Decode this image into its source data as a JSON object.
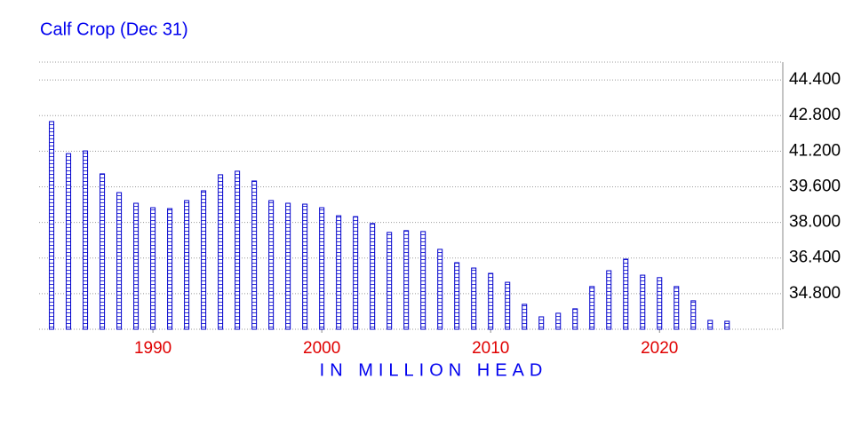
{
  "chart_data": {
    "type": "bar",
    "title": "Calf Crop (Dec 31)",
    "y_label": "IN MILLION HEAD",
    "x": [
      1984,
      1985,
      1986,
      1987,
      1988,
      1989,
      1990,
      1991,
      1992,
      1993,
      1994,
      1995,
      1996,
      1997,
      1998,
      1999,
      2000,
      2001,
      2002,
      2003,
      2004,
      2005,
      2006,
      2007,
      2008,
      2009,
      2010,
      2011,
      2012,
      2013,
      2014,
      2015,
      2016,
      2017,
      2018,
      2019,
      2020,
      2021,
      2022,
      2023,
      2024
    ],
    "values": [
      42.53,
      41.09,
      41.21,
      40.18,
      39.34,
      38.86,
      38.66,
      38.62,
      38.98,
      39.42,
      40.14,
      40.3,
      39.86,
      38.98,
      38.86,
      38.82,
      38.66,
      38.3,
      38.26,
      37.95,
      37.55,
      37.63,
      37.59,
      36.79,
      36.19,
      35.95,
      35.71,
      35.31,
      34.32,
      33.76,
      33.92,
      34.12,
      35.12,
      35.83,
      36.35,
      35.63,
      35.52,
      35.12,
      34.48,
      33.6,
      33.56
    ],
    "color": "#0000cc",
    "xlim": [
      1983.26,
      2027.3
    ],
    "xticks": [
      1990,
      2000,
      2010,
      2020
    ],
    "ylim": [
      33.2,
      45.2
    ],
    "yticks": [
      {
        "value": 34.8,
        "label": "34.800"
      },
      {
        "value": 36.4,
        "label": "36.400"
      },
      {
        "value": 38,
        "label": "38.000"
      },
      {
        "value": 39.6,
        "label": "39.600"
      },
      {
        "value": 41.2,
        "label": "41.200"
      },
      {
        "value": 42.8,
        "label": "42.800"
      },
      {
        "value": 44.4,
        "label": "44.400"
      }
    ],
    "grid": true
  }
}
